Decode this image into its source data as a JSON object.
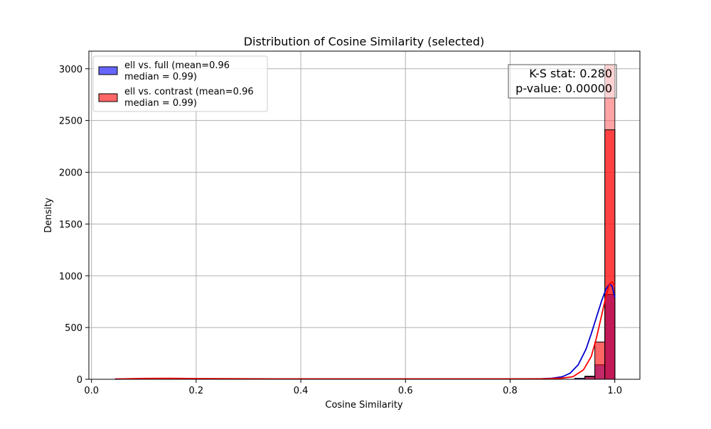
{
  "chart_data": {
    "type": "bar",
    "title": "Distribution of Cosine Similarity (selected)",
    "xlabel": "Cosine Similarity",
    "ylabel": "Density",
    "xlim": [
      -0.005,
      1.048
    ],
    "ylim": [
      0,
      3170
    ],
    "x_ticks": [
      0.0,
      0.2,
      0.4,
      0.6,
      0.8,
      1.0
    ],
    "x_tick_labels": [
      "0.0",
      "0.2",
      "0.4",
      "0.6",
      "0.8",
      "1.0"
    ],
    "y_ticks": [
      0,
      500,
      1000,
      1500,
      2000,
      2500,
      3000
    ],
    "y_tick_labels": [
      "0",
      "500",
      "1000",
      "1500",
      "2000",
      "2500",
      "3000"
    ],
    "grid": true,
    "legend_position": "top-left",
    "bin_width": 0.01915,
    "series": [
      {
        "name": "ell vs. full (mean=0.96\nmedian = 0.99)",
        "legend_line1": "ell vs. full (mean=0.96",
        "legend_line2": "median = 0.99)",
        "color": "#0000ff",
        "bar_fill": "rgba(0,0,255,0.6)",
        "line_color": "#0000cc",
        "bins": [
          {
            "x0": 0.9236,
            "x1": 0.9427,
            "y": 10
          },
          {
            "x0": 0.9427,
            "x1": 0.9619,
            "y": 30
          },
          {
            "x0": 0.9619,
            "x1": 0.981,
            "y": 140
          },
          {
            "x0": 0.981,
            "x1": 1.0002,
            "y": 820
          }
        ],
        "kde": [
          [
            0.045,
            2
          ],
          [
            0.1,
            5
          ],
          [
            0.2,
            4
          ],
          [
            0.3,
            4
          ],
          [
            0.4,
            3
          ],
          [
            0.5,
            3
          ],
          [
            0.6,
            3
          ],
          [
            0.7,
            3
          ],
          [
            0.8,
            3
          ],
          [
            0.86,
            5
          ],
          [
            0.88,
            10
          ],
          [
            0.9,
            25
          ],
          [
            0.915,
            60
          ],
          [
            0.93,
            140
          ],
          [
            0.945,
            290
          ],
          [
            0.955,
            440
          ],
          [
            0.965,
            600
          ],
          [
            0.975,
            760
          ],
          [
            0.983,
            870
          ],
          [
            0.99,
            920
          ],
          [
            0.995,
            900
          ],
          [
            1.0,
            790
          ]
        ]
      },
      {
        "name": "ell vs. contrast (mean=0.96\nmedian = 0.99)",
        "legend_line1": "ell vs. contrast (mean=0.96",
        "legend_line2": "median = 0.99)",
        "color": "#ff0000",
        "bar_fill": "rgba(255,0,0,0.6)",
        "line_color": "#ff0000",
        "bins": [
          {
            "x0": 0.9427,
            "x1": 0.9619,
            "y": 25
          },
          {
            "x0": 0.9619,
            "x1": 0.981,
            "y": 360
          },
          {
            "x0": 0.981,
            "x1": 1.0002,
            "y": 2410
          }
        ],
        "kde": [
          [
            0.045,
            3
          ],
          [
            0.1,
            8
          ],
          [
            0.15,
            9
          ],
          [
            0.2,
            7
          ],
          [
            0.3,
            5
          ],
          [
            0.4,
            4
          ],
          [
            0.5,
            4
          ],
          [
            0.6,
            4
          ],
          [
            0.7,
            4
          ],
          [
            0.8,
            4
          ],
          [
            0.87,
            5
          ],
          [
            0.9,
            12
          ],
          [
            0.92,
            25
          ],
          [
            0.94,
            90
          ],
          [
            0.955,
            220
          ],
          [
            0.965,
            400
          ],
          [
            0.975,
            620
          ],
          [
            0.983,
            800
          ],
          [
            0.99,
            920
          ],
          [
            0.995,
            940
          ],
          [
            1.0,
            900
          ]
        ]
      }
    ],
    "overflow_bar": {
      "x0": 0.981,
      "x1": 1.0002,
      "y": 3040,
      "fill": "rgba(255,90,90,0.55)"
    },
    "stats_box": {
      "line1": "K-S stat: 0.280",
      "line2": "p-value: 0.00000"
    }
  }
}
